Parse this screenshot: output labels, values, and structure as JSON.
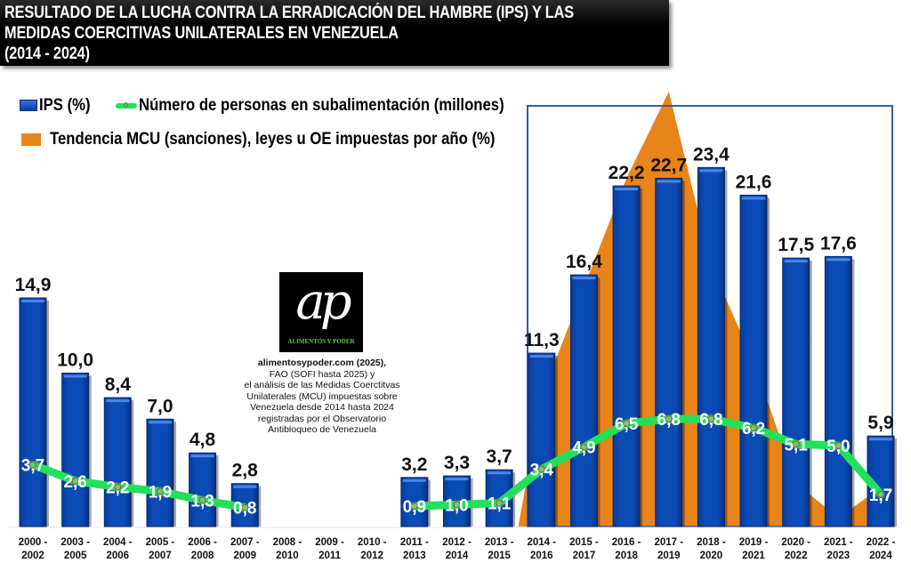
{
  "title": {
    "line1": "RESULTADO DE LA LUCHA CONTRA LA ERRADICACIÓN DEL HAMBRE (IPS) Y LAS",
    "line2": "MEDIDAS COERCITIVAS UNILATERALES EN VENEZUELA",
    "line3": "(2014 - 2024)"
  },
  "legend": {
    "ips": "IPS (%)",
    "line": "Número de personas en subalimentación (millones)",
    "mcu": "Tendencia MCU (sanciones), leyes u OE impuestas por año (%)"
  },
  "logo": {
    "mark": "ap",
    "name": "ALIMENTOS Y PODER"
  },
  "source": {
    "line1": "alimentosypoder.com (2025),",
    "line2": "FAO (SOFI hasta 2025) y",
    "line3": "el análisis  de las  Medidas Coerctitvas",
    "line4": "Unilaterales (MCU)  impuestas sobre",
    "line5": "Venezuela desde 2014 hasta 2024",
    "line6": "registradas por el Observatorio",
    "line7": "Antibloqueo de Venezuela"
  },
  "colors": {
    "ips_bar": "#0b4bb3",
    "line": "#22e05a",
    "mcu_area": "#e8841a",
    "highlight_box": "#3a5f97"
  },
  "chart_data": {
    "type": "bar",
    "title": "RESULTADO DE LA LUCHA CONTRA LA ERRADICACIÓN DEL HAMBRE (IPS) Y LAS MEDIDAS COERCITIVAS UNILATERALES EN VENEZUELA (2014 - 2024)",
    "xlabel": "",
    "ylabel": "",
    "grid": false,
    "legend_position": "top-left",
    "categories": [
      [
        "2000 -",
        "2002"
      ],
      [
        "2003 -",
        "2005"
      ],
      [
        "2004 -",
        "2006"
      ],
      [
        "2005 -",
        "2007"
      ],
      [
        "2006 -",
        "2008"
      ],
      [
        "2007 -",
        "2009"
      ],
      [
        "2008 -",
        "2010"
      ],
      [
        "2009 -",
        "2011"
      ],
      [
        "2010 -",
        "2012"
      ],
      [
        "2011 -",
        "2013"
      ],
      [
        "2012 -",
        "2014"
      ],
      [
        "2013 -",
        "2015"
      ],
      [
        "2014 -",
        "2016"
      ],
      [
        "2015 -",
        "2017"
      ],
      [
        "2016 -",
        "2018"
      ],
      [
        "2017 -",
        "2019"
      ],
      [
        "2018 -",
        "2020"
      ],
      [
        "2019 -",
        "2021"
      ],
      [
        "2020 -",
        "2022"
      ],
      [
        "2021 -",
        "2023"
      ],
      [
        "2022 -",
        "2024"
      ]
    ],
    "series": [
      {
        "name": "IPS (%)",
        "type": "bar",
        "values": [
          14.9,
          10.0,
          8.4,
          7.0,
          4.8,
          2.8,
          null,
          null,
          null,
          3.2,
          3.3,
          3.7,
          11.3,
          16.4,
          22.2,
          22.7,
          23.4,
          21.6,
          17.5,
          17.6,
          5.9
        ],
        "labels": [
          "14,9",
          "10,0",
          "8,4",
          "7,0",
          "4,8",
          "2,8",
          "",
          "",
          "",
          "3,2",
          "3,3",
          "3,7",
          "11,3",
          "16,4",
          "22,2",
          "22,7",
          "23,4",
          "21,6",
          "17,5",
          "17,6",
          "5,9"
        ]
      },
      {
        "name": "Número de personas en subalimentación (millones)",
        "type": "line",
        "values": [
          3.7,
          2.6,
          2.2,
          1.9,
          1.3,
          0.8,
          null,
          null,
          null,
          0.9,
          1.0,
          1.1,
          3.4,
          4.9,
          6.5,
          6.8,
          6.8,
          6.2,
          5.1,
          5.0,
          1.7
        ],
        "labels": [
          "3,7",
          "2,6",
          "2,2",
          "1,9",
          "1,3",
          "0,8",
          "",
          "",
          "",
          "0,9",
          "1,0",
          "1,1",
          "3,4",
          "4,9",
          "6,5",
          "6,8",
          "6,8",
          "6,2",
          "5,1",
          "5,0",
          "1,7"
        ]
      },
      {
        "name": "Tendencia MCU (sanciones), leyes u OE impuestas por año (%)",
        "type": "area",
        "unlabeled": true,
        "approx_relative_values_pct_of_peak": [
          null,
          null,
          null,
          null,
          null,
          null,
          null,
          null,
          null,
          null,
          null,
          0,
          30,
          55,
          80,
          100,
          60,
          38,
          10,
          2,
          9
        ]
      }
    ],
    "ylim": [
      0,
      28
    ]
  }
}
